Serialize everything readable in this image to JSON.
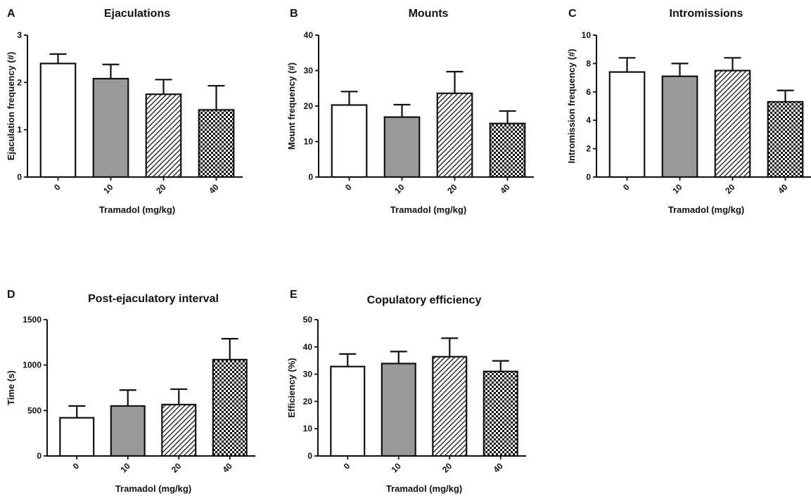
{
  "chart_data": [
    {
      "panel": "A",
      "type": "bar",
      "title": "Ejaculations",
      "xlabel": "Tramadol (mg/kg)",
      "ylabel": "Ejaculation frequency (#)",
      "categories": [
        "0",
        "10",
        "20",
        "40"
      ],
      "values": [
        2.4,
        2.08,
        1.75,
        1.42
      ],
      "errors": [
        0.2,
        0.3,
        0.31,
        0.51
      ],
      "ylim": [
        0,
        3
      ],
      "yticks": [
        0,
        1,
        2,
        3
      ],
      "grid": false,
      "legend": "none"
    },
    {
      "panel": "B",
      "type": "bar",
      "title": "Mounts",
      "xlabel": "Tramadol (mg/kg)",
      "ylabel": "Mount frequency (#)",
      "categories": [
        "0",
        "10",
        "20",
        "40"
      ],
      "values": [
        20.3,
        16.9,
        23.6,
        15.1
      ],
      "errors": [
        3.8,
        3.5,
        6.1,
        3.5
      ],
      "ylim": [
        0,
        40
      ],
      "yticks": [
        0,
        10,
        20,
        30,
        40
      ],
      "grid": false,
      "legend": "none"
    },
    {
      "panel": "C",
      "type": "bar",
      "title": "Intromissions",
      "xlabel": "Tramadol (mg/kg)",
      "ylabel": "Intromission frequency (#)",
      "categories": [
        "0",
        "10",
        "20",
        "40"
      ],
      "values": [
        7.4,
        7.1,
        7.5,
        5.3
      ],
      "errors": [
        1.0,
        0.9,
        0.9,
        0.8
      ],
      "ylim": [
        0,
        10
      ],
      "yticks": [
        0,
        2,
        4,
        6,
        8,
        10
      ],
      "grid": false,
      "legend": "none"
    },
    {
      "panel": "D",
      "type": "bar",
      "title": "Post-ejaculatory interval",
      "xlabel": "Tramadol (mg/kg)",
      "ylabel": "Time (s)",
      "categories": [
        "0",
        "10",
        "20",
        "40"
      ],
      "values": [
        420,
        550,
        565,
        1060
      ],
      "errors": [
        130,
        175,
        170,
        230
      ],
      "ylim": [
        0,
        1500
      ],
      "yticks": [
        0,
        500,
        1000,
        1500
      ],
      "grid": false,
      "legend": "none"
    },
    {
      "panel": "E",
      "type": "bar",
      "title": "Copulatory efficiency",
      "xlabel": "Tramadol (mg/kg)",
      "ylabel": "Efficiency (%)",
      "categories": [
        "0",
        "10",
        "20",
        "40"
      ],
      "values": [
        32.8,
        33.9,
        36.4,
        31.0
      ],
      "errors": [
        4.6,
        4.4,
        6.8,
        3.9
      ],
      "ylim": [
        0,
        50
      ],
      "yticks": [
        0,
        10,
        20,
        30,
        40,
        50
      ],
      "grid": false,
      "legend": "none"
    }
  ],
  "style": {
    "bar_fills": [
      "white",
      "gray",
      "diagonal-hatch",
      "checkerboard"
    ],
    "colors": {
      "gray_bar": "#999999",
      "ink": "#111111",
      "background": "#ffffff"
    }
  }
}
